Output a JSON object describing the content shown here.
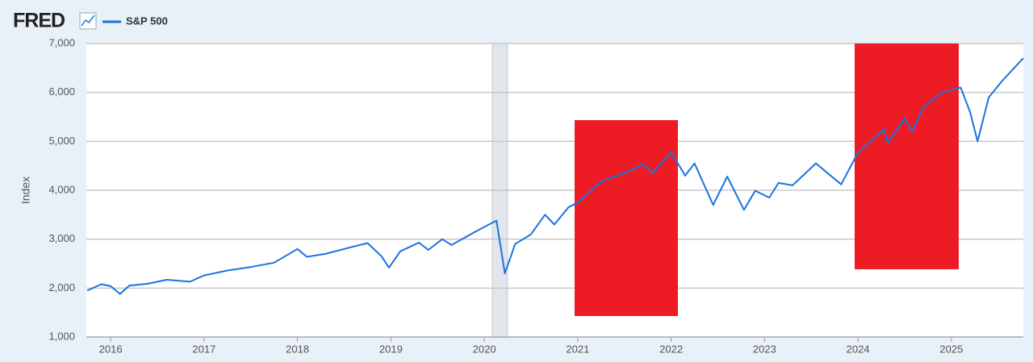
{
  "chart_data": {
    "type": "line",
    "source": "FRED",
    "ylabel": "Index",
    "x": [
      2015.75,
      2015.9,
      2016.0,
      2016.1,
      2016.2,
      2016.4,
      2016.6,
      2016.85,
      2017.0,
      2017.25,
      2017.5,
      2017.75,
      2018.0,
      2018.1,
      2018.3,
      2018.6,
      2018.75,
      2018.9,
      2018.98,
      2019.1,
      2019.3,
      2019.4,
      2019.55,
      2019.65,
      2019.9,
      2020.05,
      2020.13,
      2020.22,
      2020.33,
      2020.5,
      2020.65,
      2020.75,
      2020.9,
      2021.0,
      2021.25,
      2021.5,
      2021.7,
      2021.8,
      2022.0,
      2022.15,
      2022.25,
      2022.45,
      2022.6,
      2022.78,
      2022.9,
      2023.05,
      2023.15,
      2023.3,
      2023.55,
      2023.82,
      2024.0,
      2024.28,
      2024.32,
      2024.5,
      2024.58,
      2024.7,
      2024.9,
      2025.1,
      2025.2,
      2025.28,
      2025.4,
      2025.55,
      2025.77
    ],
    "series": [
      {
        "name": "S&P 500",
        "color": "#1a73e0",
        "values": [
          1950,
          2080,
          2040,
          1880,
          2050,
          2090,
          2170,
          2130,
          2260,
          2360,
          2430,
          2520,
          2800,
          2640,
          2700,
          2850,
          2920,
          2650,
          2420,
          2750,
          2930,
          2780,
          3000,
          2880,
          3150,
          3300,
          3380,
          2300,
          2900,
          3100,
          3500,
          3300,
          3650,
          3750,
          4180,
          4350,
          4530,
          4350,
          4780,
          4300,
          4550,
          3700,
          4280,
          3600,
          3990,
          3850,
          4150,
          4100,
          4550,
          4120,
          4770,
          5250,
          4970,
          5470,
          5200,
          5700,
          6000,
          6100,
          5600,
          5000,
          5900,
          6250,
          6700
        ]
      }
    ],
    "xlim": [
      2015.74,
      2025.77
    ],
    "xticks": [
      2016,
      2017,
      2018,
      2019,
      2020,
      2021,
      2022,
      2023,
      2024,
      2025
    ],
    "ylim": [
      1000,
      7000
    ],
    "yticks": [
      {
        "value": 1000,
        "label": "1,000"
      },
      {
        "value": 2000,
        "label": "2,000"
      },
      {
        "value": 3000,
        "label": "3,000"
      },
      {
        "value": 4000,
        "label": "4,000"
      },
      {
        "value": 5000,
        "label": "5,000"
      },
      {
        "value": 6000,
        "label": "6,000"
      },
      {
        "value": 7000,
        "label": "7,000"
      }
    ],
    "grid": true
  }
}
